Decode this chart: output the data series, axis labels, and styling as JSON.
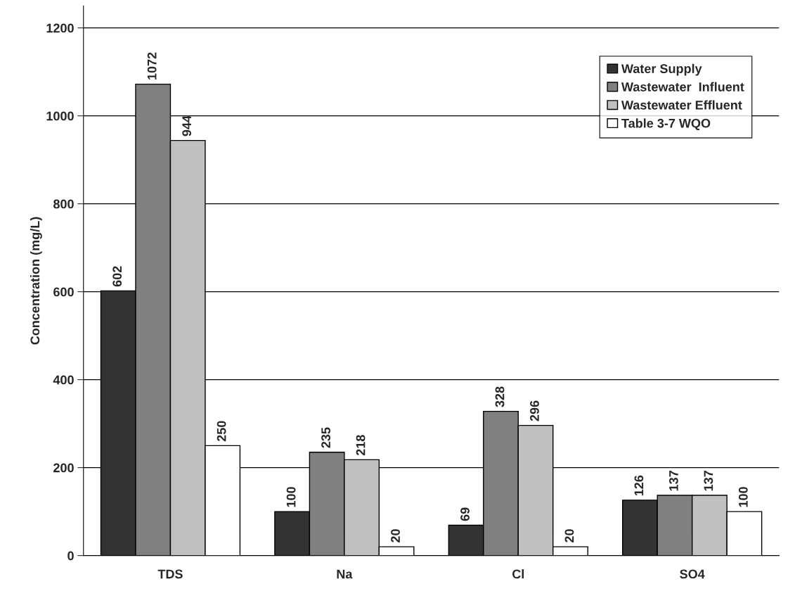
{
  "chart_data": {
    "type": "bar",
    "ylabel": "Concentration (mg/L)",
    "categories": [
      "TDS",
      "Na",
      "Cl",
      "SO4"
    ],
    "series": [
      {
        "name": "Water Supply",
        "color": "#333333",
        "values": [
          602,
          100,
          69,
          126
        ]
      },
      {
        "name": "Wastewater  Influent",
        "color": "#808080",
        "values": [
          1072,
          235,
          328,
          137
        ]
      },
      {
        "name": "Wastewater Effluent",
        "color": "#c0c0c0",
        "values": [
          944,
          218,
          296,
          137
        ]
      },
      {
        "name": "Table 3-7 WQO",
        "color": "#ffffff",
        "values": [
          250,
          20,
          20,
          100
        ]
      }
    ],
    "ylim": [
      0,
      1250
    ],
    "yticks": [
      0,
      200,
      400,
      600,
      800,
      1000,
      1200
    ],
    "grid": "y",
    "legend": "top right",
    "data_labels": true
  }
}
